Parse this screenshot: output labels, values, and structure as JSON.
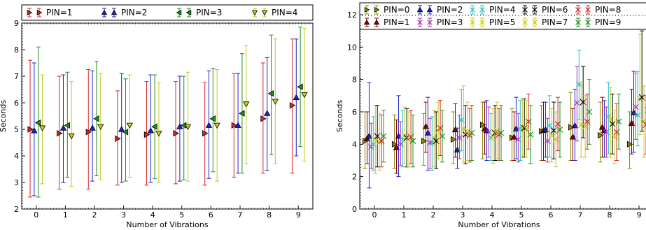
{
  "chart_data": [
    {
      "type": "scatter",
      "title": "",
      "xlabel": "Number of Vibrations",
      "ylabel": "Seconds",
      "xlim": [
        -0.5,
        9.5
      ],
      "ylim": [
        2,
        9
      ],
      "xticks": [
        0,
        1,
        2,
        3,
        4,
        5,
        6,
        7,
        8,
        9
      ],
      "yticks": [
        2,
        3,
        4,
        5,
        6,
        7,
        8,
        9
      ],
      "grid": false,
      "legend": "top, above the axes, single row",
      "series": [
        {
          "name": "PIN=1",
          "color": "#d62728",
          "marker": "triangle-right",
          "offset": -0.21,
          "values": [
            5.0,
            4.85,
            4.9,
            4.65,
            4.8,
            4.85,
            4.85,
            5.15,
            5.4,
            5.9
          ],
          "err_low": [
            2.45,
            2.75,
            2.75,
            2.9,
            2.9,
            2.95,
            2.9,
            3.2,
            3.35,
            3.35
          ],
          "err_high": [
            7.6,
            7.0,
            7.25,
            6.45,
            6.8,
            6.8,
            6.75,
            7.1,
            7.5,
            8.4
          ]
        },
        {
          "name": "PIN=2",
          "color": "#1f1fd6",
          "marker": "triangle-up",
          "offset": -0.07,
          "values": [
            4.95,
            5.05,
            5.05,
            5.0,
            4.95,
            5.1,
            5.15,
            5.15,
            5.6,
            6.2
          ],
          "err_low": [
            2.5,
            3.0,
            3.05,
            3.0,
            3.0,
            3.05,
            3.15,
            3.35,
            3.45,
            4.0
          ],
          "err_high": [
            7.5,
            7.05,
            7.2,
            7.1,
            7.05,
            7.0,
            7.2,
            7.1,
            7.7,
            8.4
          ]
        },
        {
          "name": "PIN=3",
          "color": "#1f8f1f",
          "marker": "triangle-left",
          "offset": 0.07,
          "values": [
            5.25,
            5.15,
            5.4,
            4.9,
            5.1,
            5.15,
            5.4,
            5.6,
            6.35,
            6.6
          ],
          "err_low": [
            2.45,
            3.2,
            3.25,
            3.05,
            3.15,
            3.1,
            3.4,
            3.35,
            4.05,
            4.35
          ],
          "err_high": [
            8.1,
            7.15,
            7.55,
            6.9,
            7.05,
            7.0,
            7.3,
            7.85,
            8.55,
            8.85
          ]
        },
        {
          "name": "PIN=4",
          "color": "#c8c81e",
          "marker": "triangle-down",
          "offset": 0.21,
          "values": [
            5.05,
            4.75,
            5.1,
            5.15,
            4.85,
            5.1,
            5.15,
            5.95,
            6.05,
            6.3
          ],
          "err_low": [
            2.95,
            2.85,
            3.1,
            3.2,
            3.0,
            3.05,
            3.05,
            3.7,
            3.7,
            3.8
          ],
          "err_high": [
            7.05,
            6.8,
            7.1,
            7.05,
            6.75,
            7.15,
            7.25,
            8.15,
            8.4,
            8.8
          ]
        }
      ]
    },
    {
      "type": "scatter",
      "title": "",
      "xlabel": "Number of Vibrations",
      "ylabel": "Seconds",
      "xlim": [
        -0.5,
        9.5
      ],
      "ylim": [
        0,
        12
      ],
      "xticks": [
        0,
        1,
        2,
        3,
        4,
        5,
        6,
        7,
        8,
        9
      ],
      "yticks": [
        0,
        2,
        4,
        6,
        8,
        10,
        12
      ],
      "grid": false,
      "legend": "top, above the axes, two rows, cut off at right edge",
      "series": [
        {
          "name": "PIN=0",
          "color": "#8b8b00",
          "marker": "triangle-right",
          "offset": -0.32,
          "values": [
            4.2,
            4.0,
            4.2,
            4.3,
            5.2,
            4.4,
            4.8,
            5.05,
            4.55,
            4.0
          ],
          "err_low": [
            2.5,
            2.5,
            2.7,
            2.8,
            3.1,
            3.0,
            3.0,
            3.0,
            2.9,
            2.5
          ],
          "err_high": [
            6.0,
            5.8,
            5.9,
            6.0,
            6.6,
            6.2,
            6.4,
            7.2,
            6.6,
            6.0
          ]
        },
        {
          "name": "PIN=1",
          "color": "#8b0000",
          "marker": "triangle-up",
          "offset": -0.25,
          "values": [
            4.35,
            3.8,
            5.1,
            4.9,
            4.95,
            4.45,
            4.85,
            4.45,
            5.05,
            5.3
          ],
          "err_low": [
            2.8,
            2.2,
            3.5,
            3.2,
            3.4,
            3.0,
            3.0,
            3.0,
            3.2,
            3.4
          ],
          "err_high": [
            6.0,
            5.5,
            6.6,
            6.5,
            6.6,
            6.0,
            6.6,
            6.2,
            6.9,
            7.4
          ]
        },
        {
          "name": "PIN=2",
          "color": "#1f1fd6",
          "marker": "triangle-up",
          "offset": -0.18,
          "values": [
            4.5,
            4.5,
            4.7,
            3.65,
            4.85,
            4.95,
            4.9,
            5.15,
            4.85,
            5.95
          ],
          "err_low": [
            1.3,
            2.0,
            2.4,
            2.5,
            3.0,
            3.1,
            3.2,
            3.0,
            3.2,
            3.5
          ],
          "err_high": [
            7.8,
            7.0,
            6.9,
            5.0,
            6.7,
            6.9,
            6.6,
            7.4,
            6.7,
            8.5
          ]
        },
        {
          "name": "PIN=3",
          "color": "#b030b0",
          "marker": "x",
          "offset": -0.11,
          "values": [
            3.85,
            4.0,
            4.1,
            4.4,
            4.75,
            4.3,
            4.2,
            6.55,
            4.75,
            6.3
          ],
          "err_low": [
            2.5,
            2.7,
            2.5,
            3.1,
            3.2,
            2.9,
            2.9,
            4.2,
            3.2,
            4.3
          ],
          "err_high": [
            5.3,
            5.4,
            5.6,
            5.8,
            6.3,
            5.9,
            5.6,
            8.8,
            6.3,
            8.4
          ]
        },
        {
          "name": "PIN=4",
          "color": "#20c0c0",
          "marker": "x",
          "offset": -0.04,
          "values": [
            4.0,
            4.3,
            4.1,
            5.5,
            4.4,
            4.95,
            5.15,
            7.7,
            5.7,
            5.8
          ],
          "err_low": [
            2.4,
            2.6,
            2.4,
            3.6,
            3.0,
            3.0,
            3.2,
            5.5,
            3.4,
            3.9
          ],
          "err_high": [
            5.7,
            6.1,
            5.7,
            7.4,
            5.9,
            6.7,
            7.0,
            9.8,
            7.8,
            8.5
          ]
        },
        {
          "name": "PIN=5",
          "color": "#c8c81e",
          "marker": "x",
          "offset": 0.03,
          "values": [
            4.3,
            4.55,
            4.4,
            4.95,
            4.5,
            5.05,
            4.55,
            5.2,
            5.55,
            6.8
          ],
          "err_low": [
            2.2,
            2.8,
            2.6,
            2.9,
            2.8,
            3.2,
            2.9,
            3.2,
            3.2,
            4.6
          ],
          "err_high": [
            6.4,
            6.3,
            6.1,
            7.6,
            6.2,
            6.8,
            6.2,
            7.7,
            7.5,
            10.8
          ]
        },
        {
          "name": "PIN=6",
          "color": "#000000",
          "marker": "x",
          "offset": 0.1,
          "values": [
            4.5,
            4.4,
            4.2,
            4.6,
            4.7,
            5.0,
            4.85,
            6.6,
            5.25,
            6.9
          ],
          "err_low": [
            2.6,
            2.6,
            2.5,
            2.8,
            3.0,
            3.2,
            3.1,
            4.4,
            3.4,
            4.8
          ],
          "err_high": [
            6.4,
            6.2,
            6.0,
            6.4,
            6.4,
            6.8,
            6.6,
            8.8,
            7.1,
            11.0
          ]
        },
        {
          "name": "PIN=7",
          "color": "#c8c81e",
          "marker": "x",
          "offset": 0.17,
          "values": [
            4.15,
            4.3,
            4.85,
            4.8,
            4.85,
            4.95,
            4.3,
            5.1,
            4.45,
            5.4
          ],
          "err_low": [
            2.4,
            2.6,
            3.1,
            3.0,
            3.1,
            3.2,
            2.6,
            3.2,
            2.8,
            3.2
          ],
          "err_high": [
            5.9,
            6.0,
            6.6,
            6.6,
            6.6,
            6.7,
            6.0,
            7.0,
            6.1,
            7.6
          ]
        },
        {
          "name": "PIN=8",
          "color": "#d62728",
          "marker": "x",
          "offset": 0.24,
          "values": [
            4.2,
            4.45,
            5.0,
            4.55,
            4.6,
            5.4,
            5.25,
            5.4,
            4.75,
            5.2
          ],
          "err_low": [
            2.6,
            2.8,
            3.3,
            2.9,
            3.0,
            3.7,
            3.6,
            3.7,
            3.0,
            3.4
          ],
          "err_high": [
            5.8,
            6.1,
            6.7,
            6.2,
            6.2,
            7.1,
            6.9,
            7.1,
            6.5,
            7.0
          ]
        },
        {
          "name": "PIN=9",
          "color": "#1f8f1f",
          "marker": "x",
          "offset": 0.31,
          "values": [
            4.5,
            4.2,
            4.5,
            4.7,
            4.7,
            4.6,
            4.9,
            6.0,
            5.4,
            6.1
          ],
          "err_low": [
            2.9,
            2.6,
            2.9,
            3.0,
            3.0,
            2.8,
            3.2,
            4.0,
            3.7,
            4.4
          ],
          "err_high": [
            6.1,
            5.8,
            6.1,
            6.4,
            6.4,
            6.4,
            6.6,
            8.0,
            7.1,
            7.8
          ]
        }
      ]
    }
  ]
}
